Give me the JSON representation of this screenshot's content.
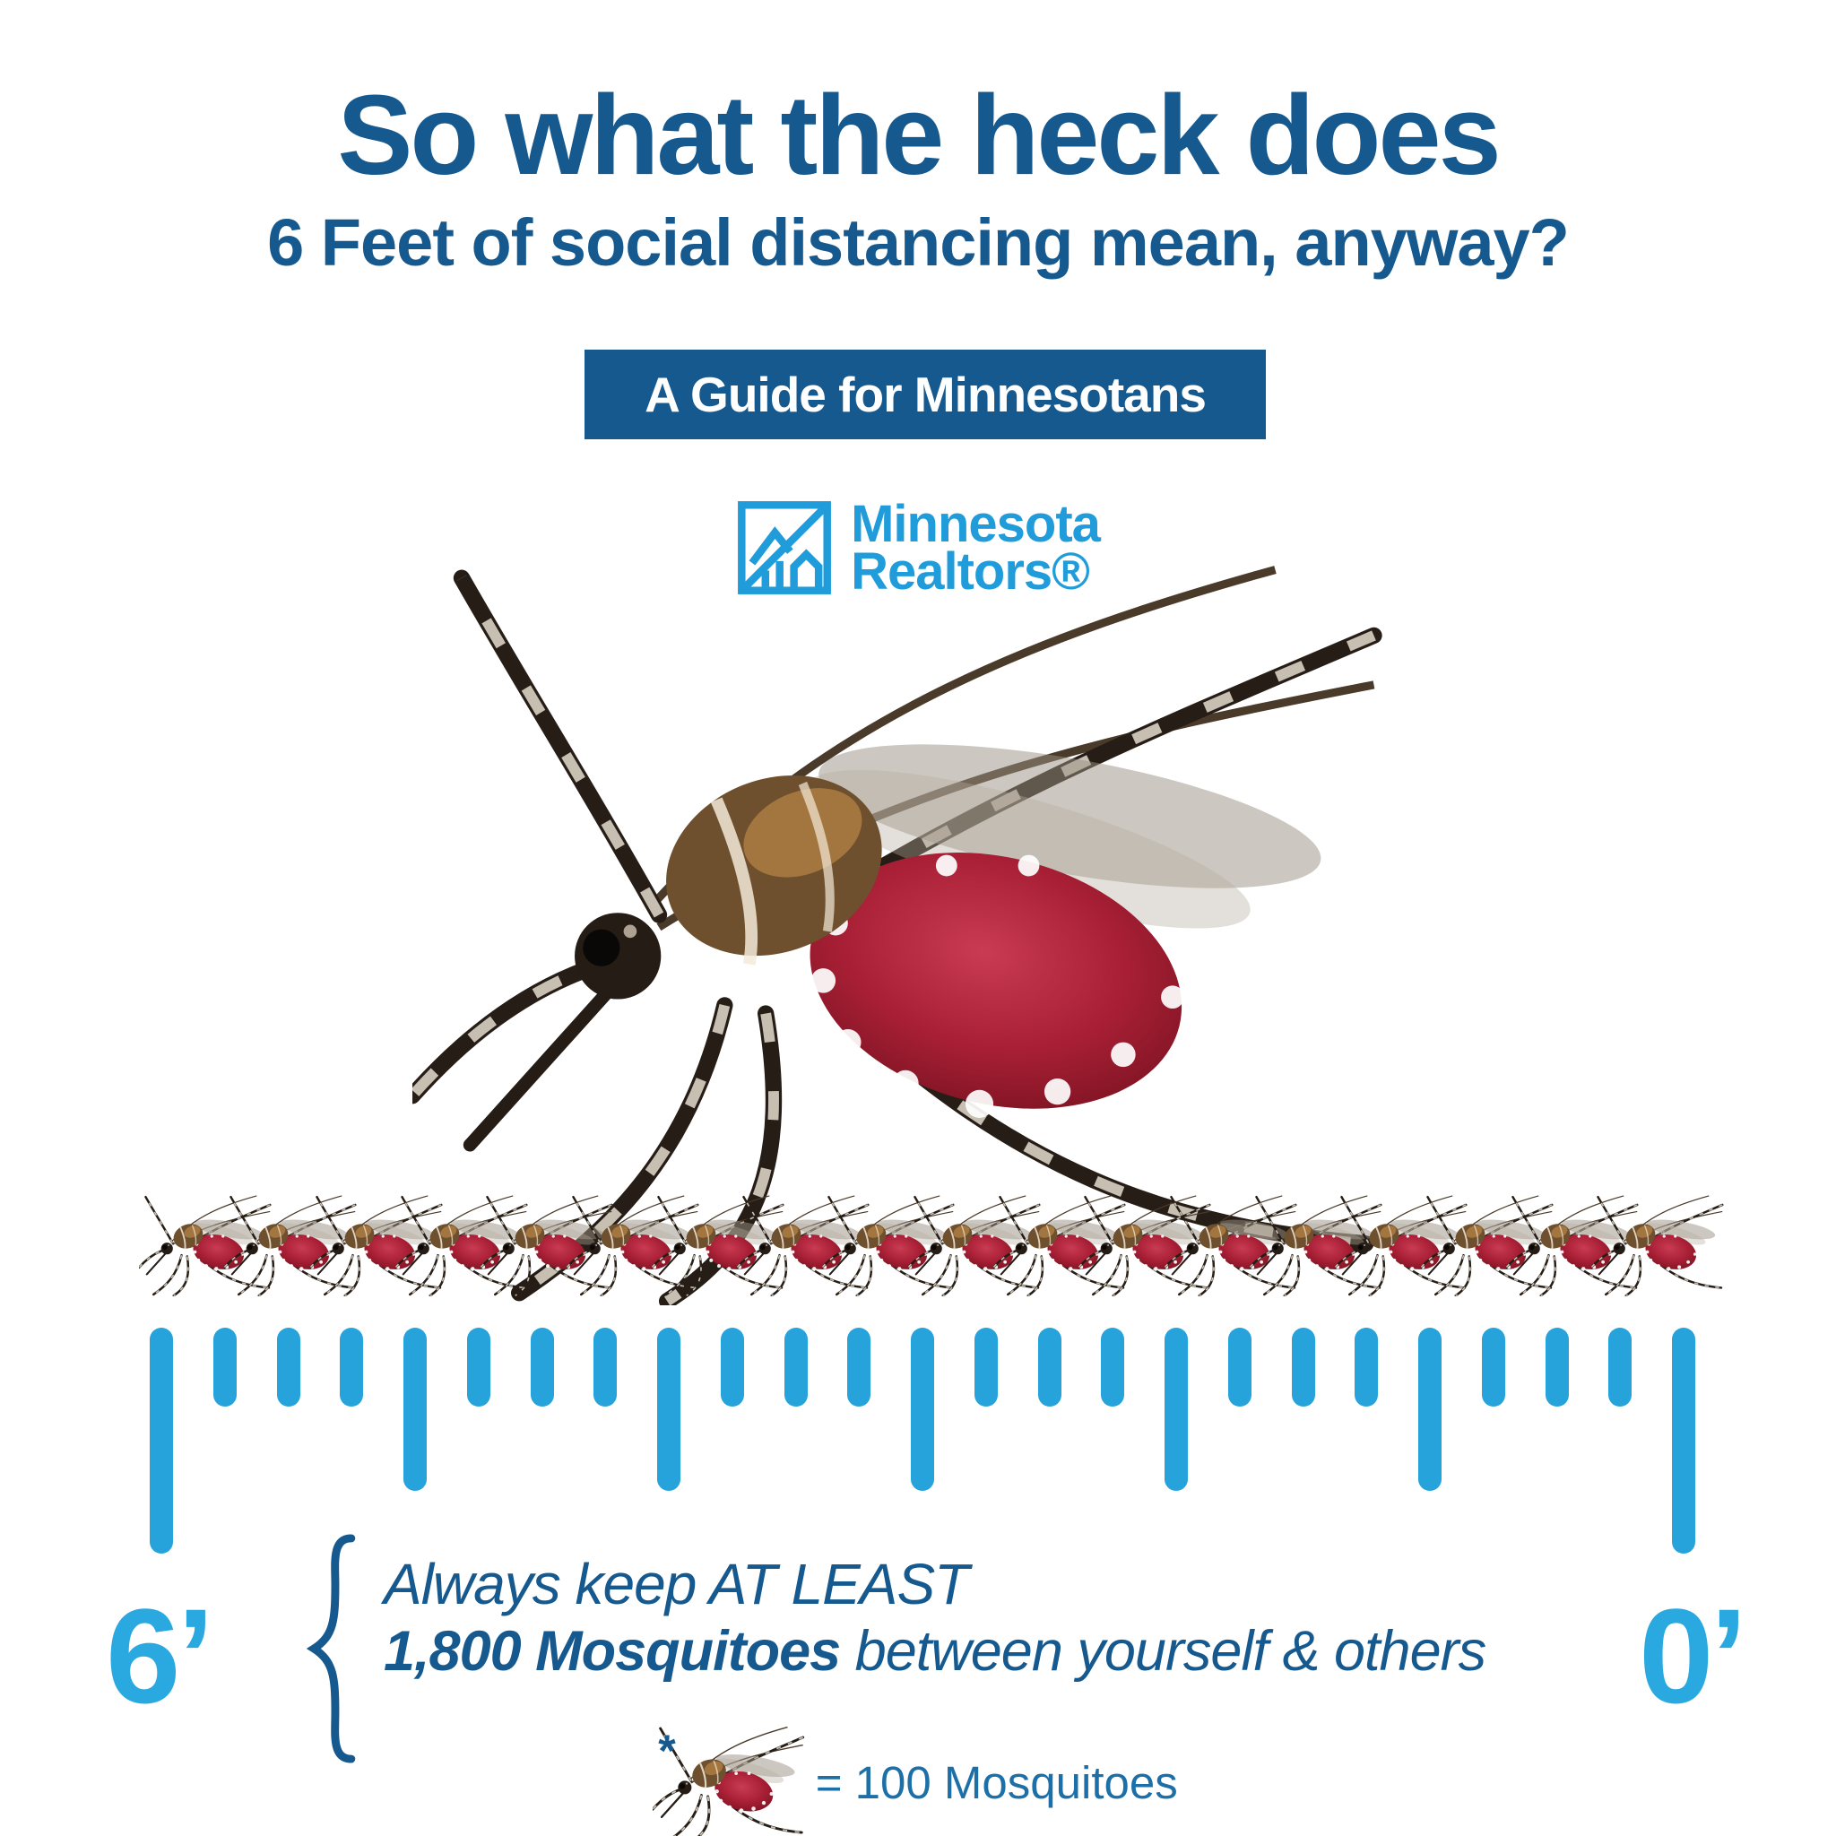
{
  "header": {
    "title_line1": "So what the heck does",
    "title_line2": "6 Feet of social distancing mean, anyway?"
  },
  "banner": {
    "label": "A Guide for Minnesotans"
  },
  "logo": {
    "org_line1": "Minnesota",
    "org_line2": "Realtors®"
  },
  "hero": {
    "image": "blood-fed-mosquito-photo"
  },
  "mosquito_row": {
    "count": 18,
    "mosquitoes_per_icon": 100,
    "total_represented": 1800
  },
  "ruler": {
    "tick_count": 25,
    "ticks_per_foot": 4,
    "feet": 6,
    "left_label": "6’",
    "right_label": "0’"
  },
  "callout": {
    "line1": "Always keep AT LEAST",
    "line2_bold": "1,800 Mosquitoes",
    "line2_rest": " between yourself & others"
  },
  "legend": {
    "marker": "*",
    "label": "= 100 Mosquitoes"
  },
  "colors": {
    "dark_blue": "#16598f",
    "light_blue": "#27a3dc",
    "label_blue": "#2aa9e1",
    "logo_blue": "#1f9cd9",
    "legend_blue": "#1d6fa7",
    "abdomen_red": "#a81f35",
    "white": "#ffffff"
  }
}
